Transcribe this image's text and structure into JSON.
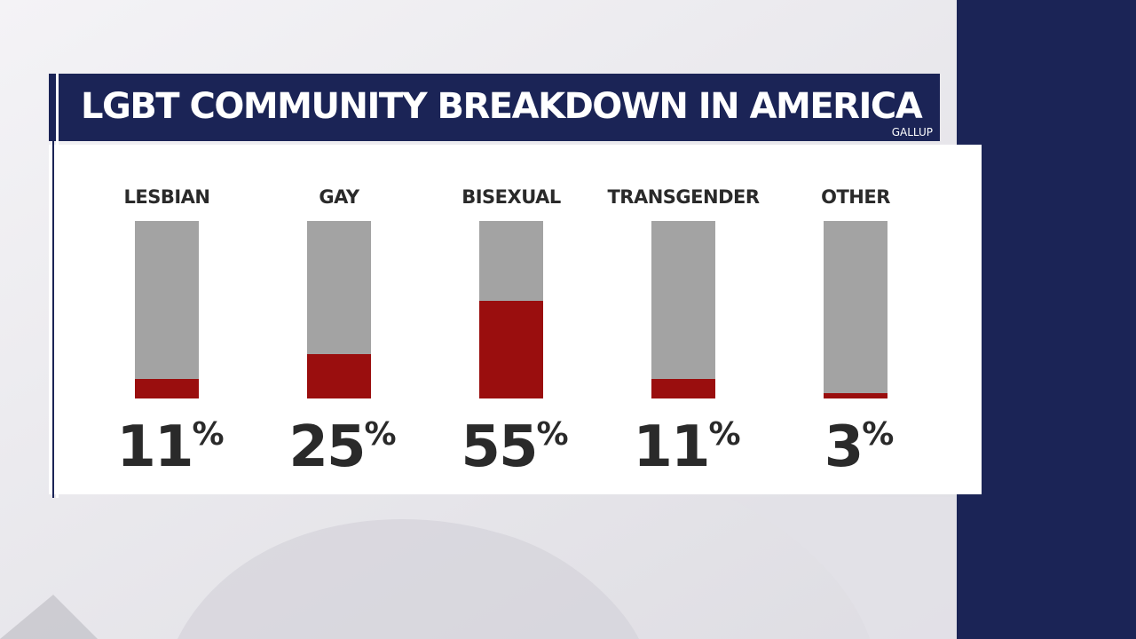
{
  "header": {
    "title": "LGBT COMMUNITY BREAKDOWN IN AMERICA",
    "source": "GALLUP"
  },
  "colors": {
    "navy": "#1b2456",
    "fill": "#9a0e0e",
    "track": "#a3a3a3",
    "text": "#2a2a2a"
  },
  "chart_data": {
    "type": "bar",
    "title": "LGBT COMMUNITY BREAKDOWN IN AMERICA",
    "categories": [
      "LESBIAN",
      "GAY",
      "BISEXUAL",
      "TRANSGENDER",
      "OTHER"
    ],
    "values": [
      11,
      25,
      55,
      11,
      3
    ],
    "value_labels": [
      "11",
      "25",
      "55",
      "11",
      "3"
    ],
    "unit": "%",
    "ylim": [
      0,
      100
    ],
    "grid": false,
    "legend": "none"
  }
}
